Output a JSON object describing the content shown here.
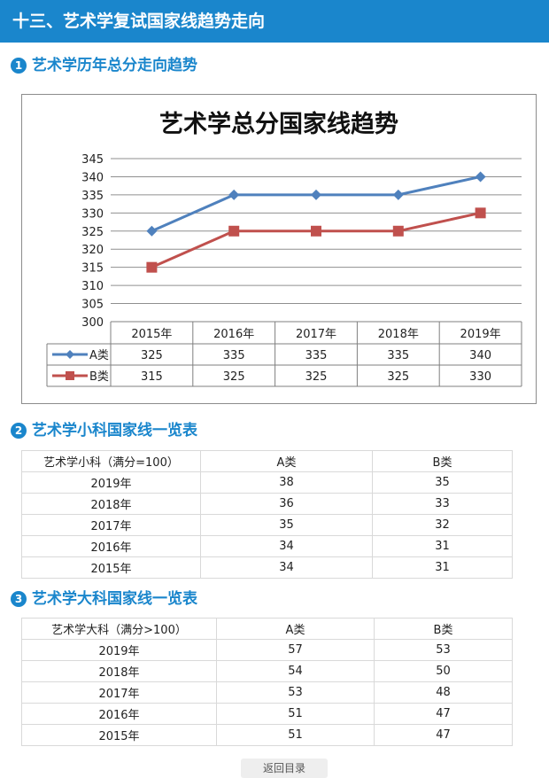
{
  "header": {
    "title": "十三、艺术学复试国家线趋势走向"
  },
  "sections": [
    {
      "num": "1",
      "title": "艺术学历年总分走向趋势"
    },
    {
      "num": "2",
      "title": "艺术学小科国家线一览表"
    },
    {
      "num": "3",
      "title": "艺术学大科国家线一览表"
    }
  ],
  "chart_data": {
    "type": "line",
    "title": "艺术学总分国家线趋势",
    "categories": [
      "2015年",
      "2016年",
      "2017年",
      "2018年",
      "2019年"
    ],
    "series": [
      {
        "name": "A类",
        "values": [
          325,
          335,
          335,
          335,
          340
        ],
        "color": "#4f81bd",
        "marker": "diamond"
      },
      {
        "name": "B类",
        "values": [
          315,
          325,
          325,
          325,
          330
        ],
        "color": "#c0504d",
        "marker": "square"
      }
    ],
    "ylim": [
      300,
      345
    ],
    "yticks": [
      300,
      305,
      310,
      315,
      320,
      325,
      330,
      335,
      340,
      345
    ],
    "grid": true,
    "data_table": true
  },
  "table_small": {
    "headers": [
      "艺术学小科（满分=100）",
      "A类",
      "B类"
    ],
    "rows": [
      [
        "2019年",
        "38",
        "35"
      ],
      [
        "2018年",
        "36",
        "33"
      ],
      [
        "2017年",
        "35",
        "32"
      ],
      [
        "2016年",
        "34",
        "31"
      ],
      [
        "2015年",
        "34",
        "31"
      ]
    ]
  },
  "table_large": {
    "headers": [
      "艺术学大科（满分>100）",
      "A类",
      "B类"
    ],
    "rows": [
      [
        "2019年",
        "57",
        "53"
      ],
      [
        "2018年",
        "54",
        "50"
      ],
      [
        "2017年",
        "53",
        "48"
      ],
      [
        "2016年",
        "51",
        "47"
      ],
      [
        "2015年",
        "51",
        "47"
      ]
    ]
  },
  "footer": {
    "button_label": "返回目录"
  }
}
